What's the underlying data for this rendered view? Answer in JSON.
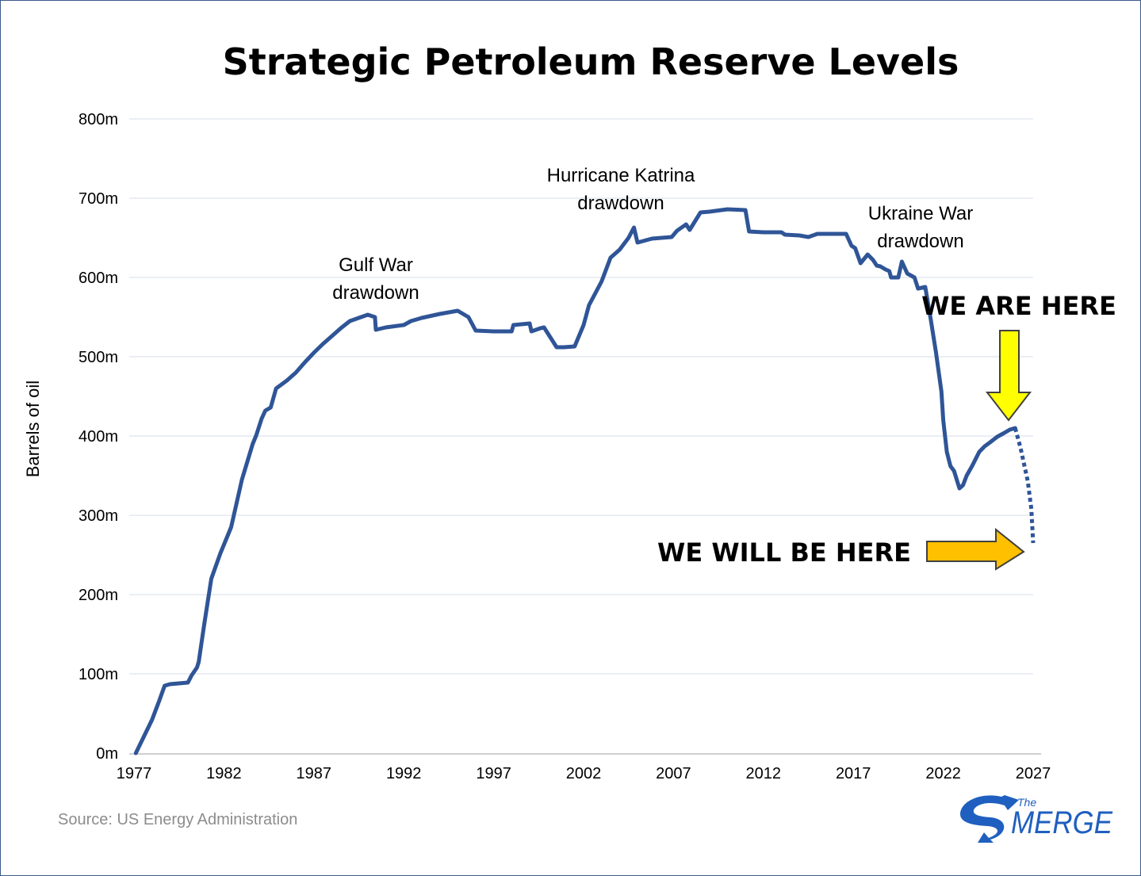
{
  "chart_data": {
    "type": "line",
    "title": "Strategic Petroleum Reserve Levels",
    "xlabel": "",
    "ylabel": "Barrels of oil",
    "xlim": [
      1977,
      2027
    ],
    "ylim": [
      0,
      800
    ],
    "x_ticks": [
      "1977",
      "1982",
      "1987",
      "1992",
      "1997",
      "2002",
      "2007",
      "2012",
      "2017",
      "2022",
      "2027"
    ],
    "y_ticks": [
      "0m",
      "100m",
      "200m",
      "300m",
      "400m",
      "500m",
      "600m",
      "700m",
      "800m"
    ],
    "grid": "horizontal",
    "series": [
      {
        "name": "SPR level (millions of barrels)",
        "color": "#2f5597",
        "style": "solid",
        "x": [
          1977.1,
          1978.0,
          1978.4,
          1978.7,
          1979.0,
          1979.5,
          1980.0,
          1980.2,
          1980.5,
          1980.6,
          1980.9,
          1981.3,
          1981.8,
          1982.4,
          1983.0,
          1983.6,
          1983.8,
          1984.1,
          1984.3,
          1984.6,
          1984.9,
          1985.5,
          1986.0,
          1986.5,
          1987.0,
          1987.5,
          1988.0,
          1988.5,
          1989.0,
          1989.5,
          1990.0,
          1990.4,
          1990.45,
          1991.0,
          1992.0,
          1992.4,
          1993.0,
          1994.0,
          1995.0,
          1995.6,
          1996.0,
          1997.0,
          1998.0,
          1998.1,
          1999.0,
          1999.1,
          1999.6,
          1999.8,
          2000.5,
          2000.9,
          2001.5,
          2002.0,
          2002.3,
          2003.0,
          2003.5,
          2004.0,
          2004.5,
          2004.8,
          2005.0,
          2005.8,
          2006.9,
          2007.2,
          2007.7,
          2007.9,
          2008.5,
          2009.0,
          2010.0,
          2011.0,
          2011.2,
          2012.0,
          2013.0,
          2013.2,
          2014.0,
          2014.5,
          2015.0,
          2016.0,
          2016.6,
          2016.9,
          2017.1,
          2017.4,
          2017.8,
          2018.1,
          2018.3,
          2018.5,
          2018.8,
          2019.0,
          2019.1,
          2019.5,
          2019.7,
          2020.0,
          2020.4,
          2020.6,
          2021.0,
          2021.3,
          2021.6,
          2021.9,
          2022.0,
          2022.2,
          2022.4,
          2022.6,
          2022.9,
          2023.1,
          2023.3,
          2023.6,
          2024.0,
          2024.3,
          2024.6,
          2025.0,
          2025.4,
          2025.7,
          2026.0
        ],
        "y": [
          0,
          42,
          66,
          85,
          87,
          88,
          89,
          98,
          108,
          115,
          162,
          220,
          252,
          285,
          345,
          390,
          401,
          422,
          432,
          436,
          460,
          470,
          480,
          493,
          505,
          516,
          526,
          536,
          545,
          549,
          553,
          550,
          534,
          537,
          540,
          545,
          549,
          554,
          558,
          550,
          533,
          532,
          532,
          540,
          542,
          532,
          536,
          537,
          512,
          512,
          513,
          540,
          565,
          595,
          625,
          635,
          650,
          663,
          644,
          649,
          651,
          659,
          667,
          660,
          682,
          683,
          686,
          685,
          658,
          657,
          657,
          654,
          653,
          651,
          655,
          655,
          655,
          640,
          637,
          618,
          629,
          622,
          615,
          614,
          610,
          608,
          600,
          600,
          620,
          605,
          600,
          586,
          588,
          548,
          505,
          456,
          420,
          380,
          362,
          356,
          334,
          338,
          350,
          362,
          380,
          387,
          392,
          399,
          404,
          408,
          410
        ]
      },
      {
        "name": "Projection",
        "color": "#2f5597",
        "style": "dotted",
        "x": [
          2026.0,
          2026.3,
          2026.7,
          2026.9,
          2027.0
        ],
        "y": [
          410,
          385,
          343,
          308,
          265
        ]
      }
    ],
    "annotations": [
      {
        "lines": [
          "Gulf War",
          "drawdown"
        ]
      },
      {
        "lines": [
          "Hurricane Katrina",
          "drawdown"
        ]
      },
      {
        "lines": [
          "Ukraine War",
          "drawdown"
        ]
      }
    ],
    "callouts": [
      {
        "text": "WE ARE HERE",
        "arrow_color": "#ffff00",
        "arrow": "down"
      },
      {
        "text": "WE WILL BE HERE",
        "arrow_color": "#ffc000",
        "arrow": "right"
      }
    ]
  },
  "footer": {
    "source": "Source: US Energy Administration",
    "logo_small": "The",
    "logo_big": "MERGE"
  }
}
